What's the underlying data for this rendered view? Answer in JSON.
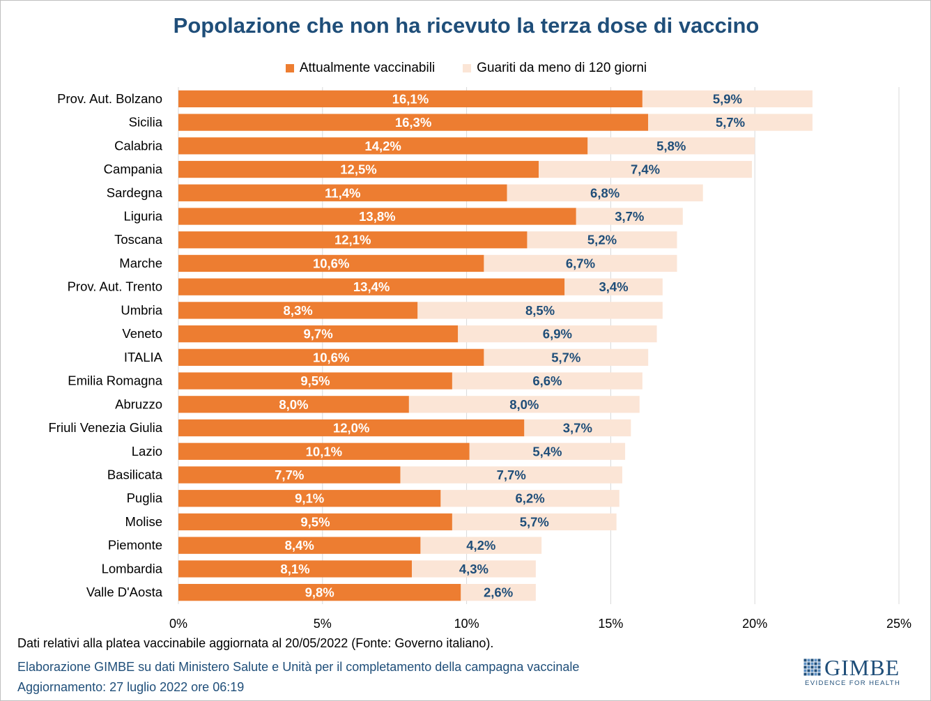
{
  "footnote": "Dati relativi alla platea vaccinabile aggiornata al 20/05/2022 (Fonte: Governo italiano).",
  "credit": "Elaborazione GIMBE su dati Ministero Salute e Unità per il completamento della campagna vaccinale",
  "updated": "Aggiornamento: 27 luglio 2022 ore 06:19",
  "logo": {
    "name": "GIMBE",
    "tagline": "EVIDENCE FOR HEALTH"
  },
  "chart_data": {
    "type": "bar",
    "orientation": "horizontal",
    "stacked": true,
    "title": "Popolazione che non ha ricevuto la terza dose di vaccino",
    "legend_position": "top",
    "grid": true,
    "xlim": [
      0,
      25
    ],
    "x_ticks": [
      "0%",
      "5%",
      "10%",
      "15%",
      "20%",
      "25%"
    ],
    "categories": [
      "Prov. Aut. Bolzano",
      "Sicilia",
      "Calabria",
      "Campania",
      "Sardegna",
      "Liguria",
      "Toscana",
      "Marche",
      "Prov. Aut. Trento",
      "Umbria",
      "Veneto",
      "ITALIA",
      "Emilia Romagna",
      "Abruzzo",
      "Friuli Venezia Giulia",
      "Lazio",
      "Basilicata",
      "Puglia",
      "Molise",
      "Piemonte",
      "Lombardia",
      "Valle D'Aosta"
    ],
    "series": [
      {
        "name": "Attualmente vaccinabili",
        "color": "#ed7d31",
        "label_color": "#ffffff",
        "values": [
          16.1,
          16.3,
          14.2,
          12.5,
          11.4,
          13.8,
          12.1,
          10.6,
          13.4,
          8.3,
          9.7,
          10.6,
          9.5,
          8.0,
          12.0,
          10.1,
          7.7,
          9.1,
          9.5,
          8.4,
          8.1,
          9.8
        ],
        "labels": [
          "16,1%",
          "16,3%",
          "14,2%",
          "12,5%",
          "11,4%",
          "13,8%",
          "12,1%",
          "10,6%",
          "13,4%",
          "8,3%",
          "9,7%",
          "10,6%",
          "9,5%",
          "8,0%",
          "12,0%",
          "10,1%",
          "7,7%",
          "9,1%",
          "9,5%",
          "8,4%",
          "8,1%",
          "9,8%"
        ]
      },
      {
        "name": "Guariti da meno di 120 giorni",
        "color": "#fbe5d6",
        "label_color": "#1f4e79",
        "values": [
          5.9,
          5.7,
          5.8,
          7.4,
          6.8,
          3.7,
          5.2,
          6.7,
          3.4,
          8.5,
          6.9,
          5.7,
          6.6,
          8.0,
          3.7,
          5.4,
          7.7,
          6.2,
          5.7,
          4.2,
          4.3,
          2.6
        ],
        "labels": [
          "5,9%",
          "5,7%",
          "5,8%",
          "7,4%",
          "6,8%",
          "3,7%",
          "5,2%",
          "6,7%",
          "3,4%",
          "8,5%",
          "6,9%",
          "5,7%",
          "6,6%",
          "8,0%",
          "3,7%",
          "5,4%",
          "7,7%",
          "6,2%",
          "5,7%",
          "4,2%",
          "4,3%",
          "2,6%"
        ]
      }
    ]
  }
}
